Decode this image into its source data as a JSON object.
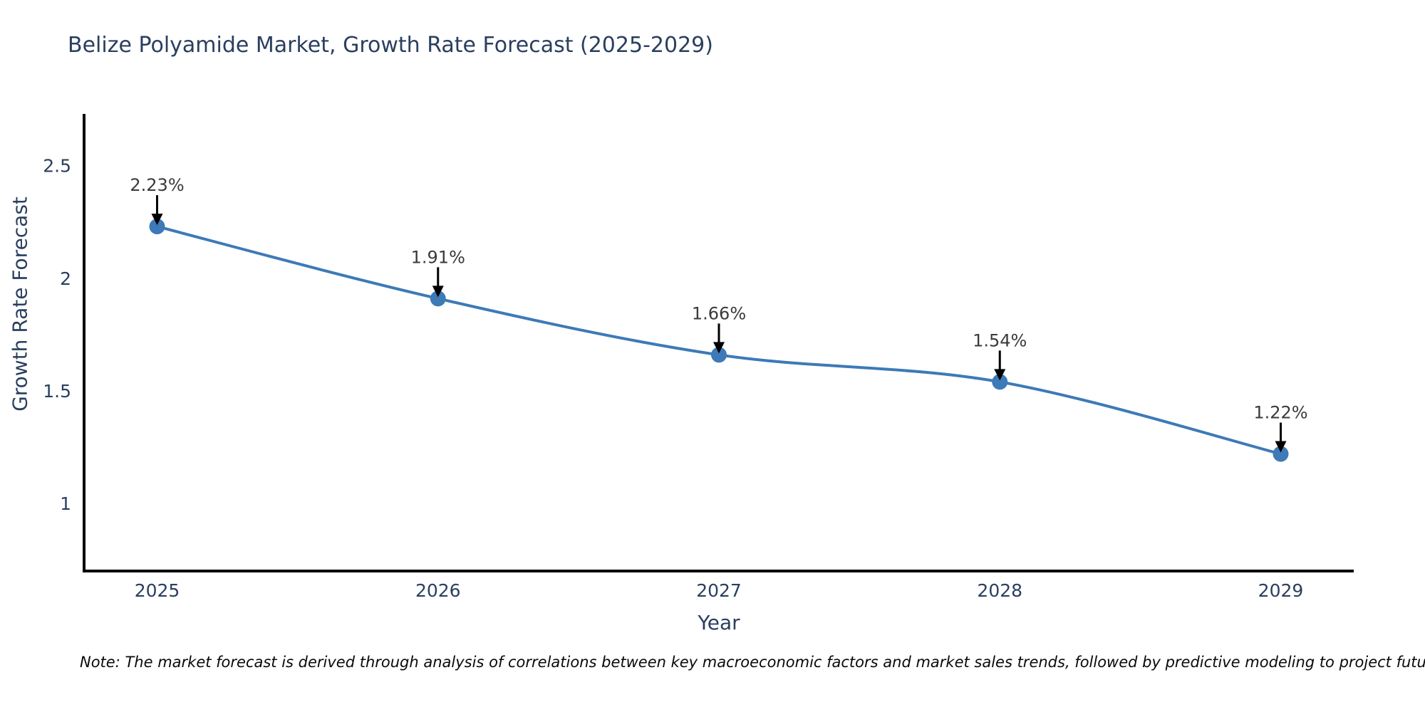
{
  "page": {
    "background": "#ffffff"
  },
  "note": "Note: The market forecast is derived through analysis of correlations between key macroeconomic factors and market sales trends, followed by predictive modeling to project future sales",
  "chart_data": {
    "type": "line",
    "title": "Belize Polyamide Market, Growth Rate Forecast (2025-2029)",
    "xlabel": "Year",
    "ylabel": "Growth Rate Forecast",
    "x": [
      2025,
      2026,
      2027,
      2028,
      2029
    ],
    "series": [
      {
        "name": "Growth Rate Forecast",
        "values": [
          2.23,
          1.91,
          1.66,
          1.54,
          1.22
        ]
      }
    ],
    "point_labels": [
      "2.23%",
      "1.91%",
      "1.66%",
      "1.54%",
      "1.22%"
    ],
    "xticks": [
      "2025",
      "2026",
      "2027",
      "2028",
      "2029"
    ],
    "xtick_values": [
      2025,
      2026,
      2027,
      2028,
      2029
    ],
    "yticks": [
      "1",
      "1.5",
      "2",
      "2.5"
    ],
    "ytick_values": [
      1,
      1.5,
      2,
      2.5
    ],
    "xlim": [
      2024.74,
      2029.26
    ],
    "ylim": [
      0.7,
      2.73
    ],
    "grid": false,
    "legend": "none",
    "line_shape": "spline",
    "annotations_have_arrows": true,
    "colors": {
      "line": "#3d7ab7",
      "marker": "#3d7ab7",
      "annotation_text": "#3a3a3a",
      "arrow": "#000000",
      "axis_line": "#000000",
      "title_text": "#2a3f5f",
      "tick_text": "#2a3f5f",
      "note_text": "#0a0a0a",
      "background": "#ffffff"
    }
  }
}
